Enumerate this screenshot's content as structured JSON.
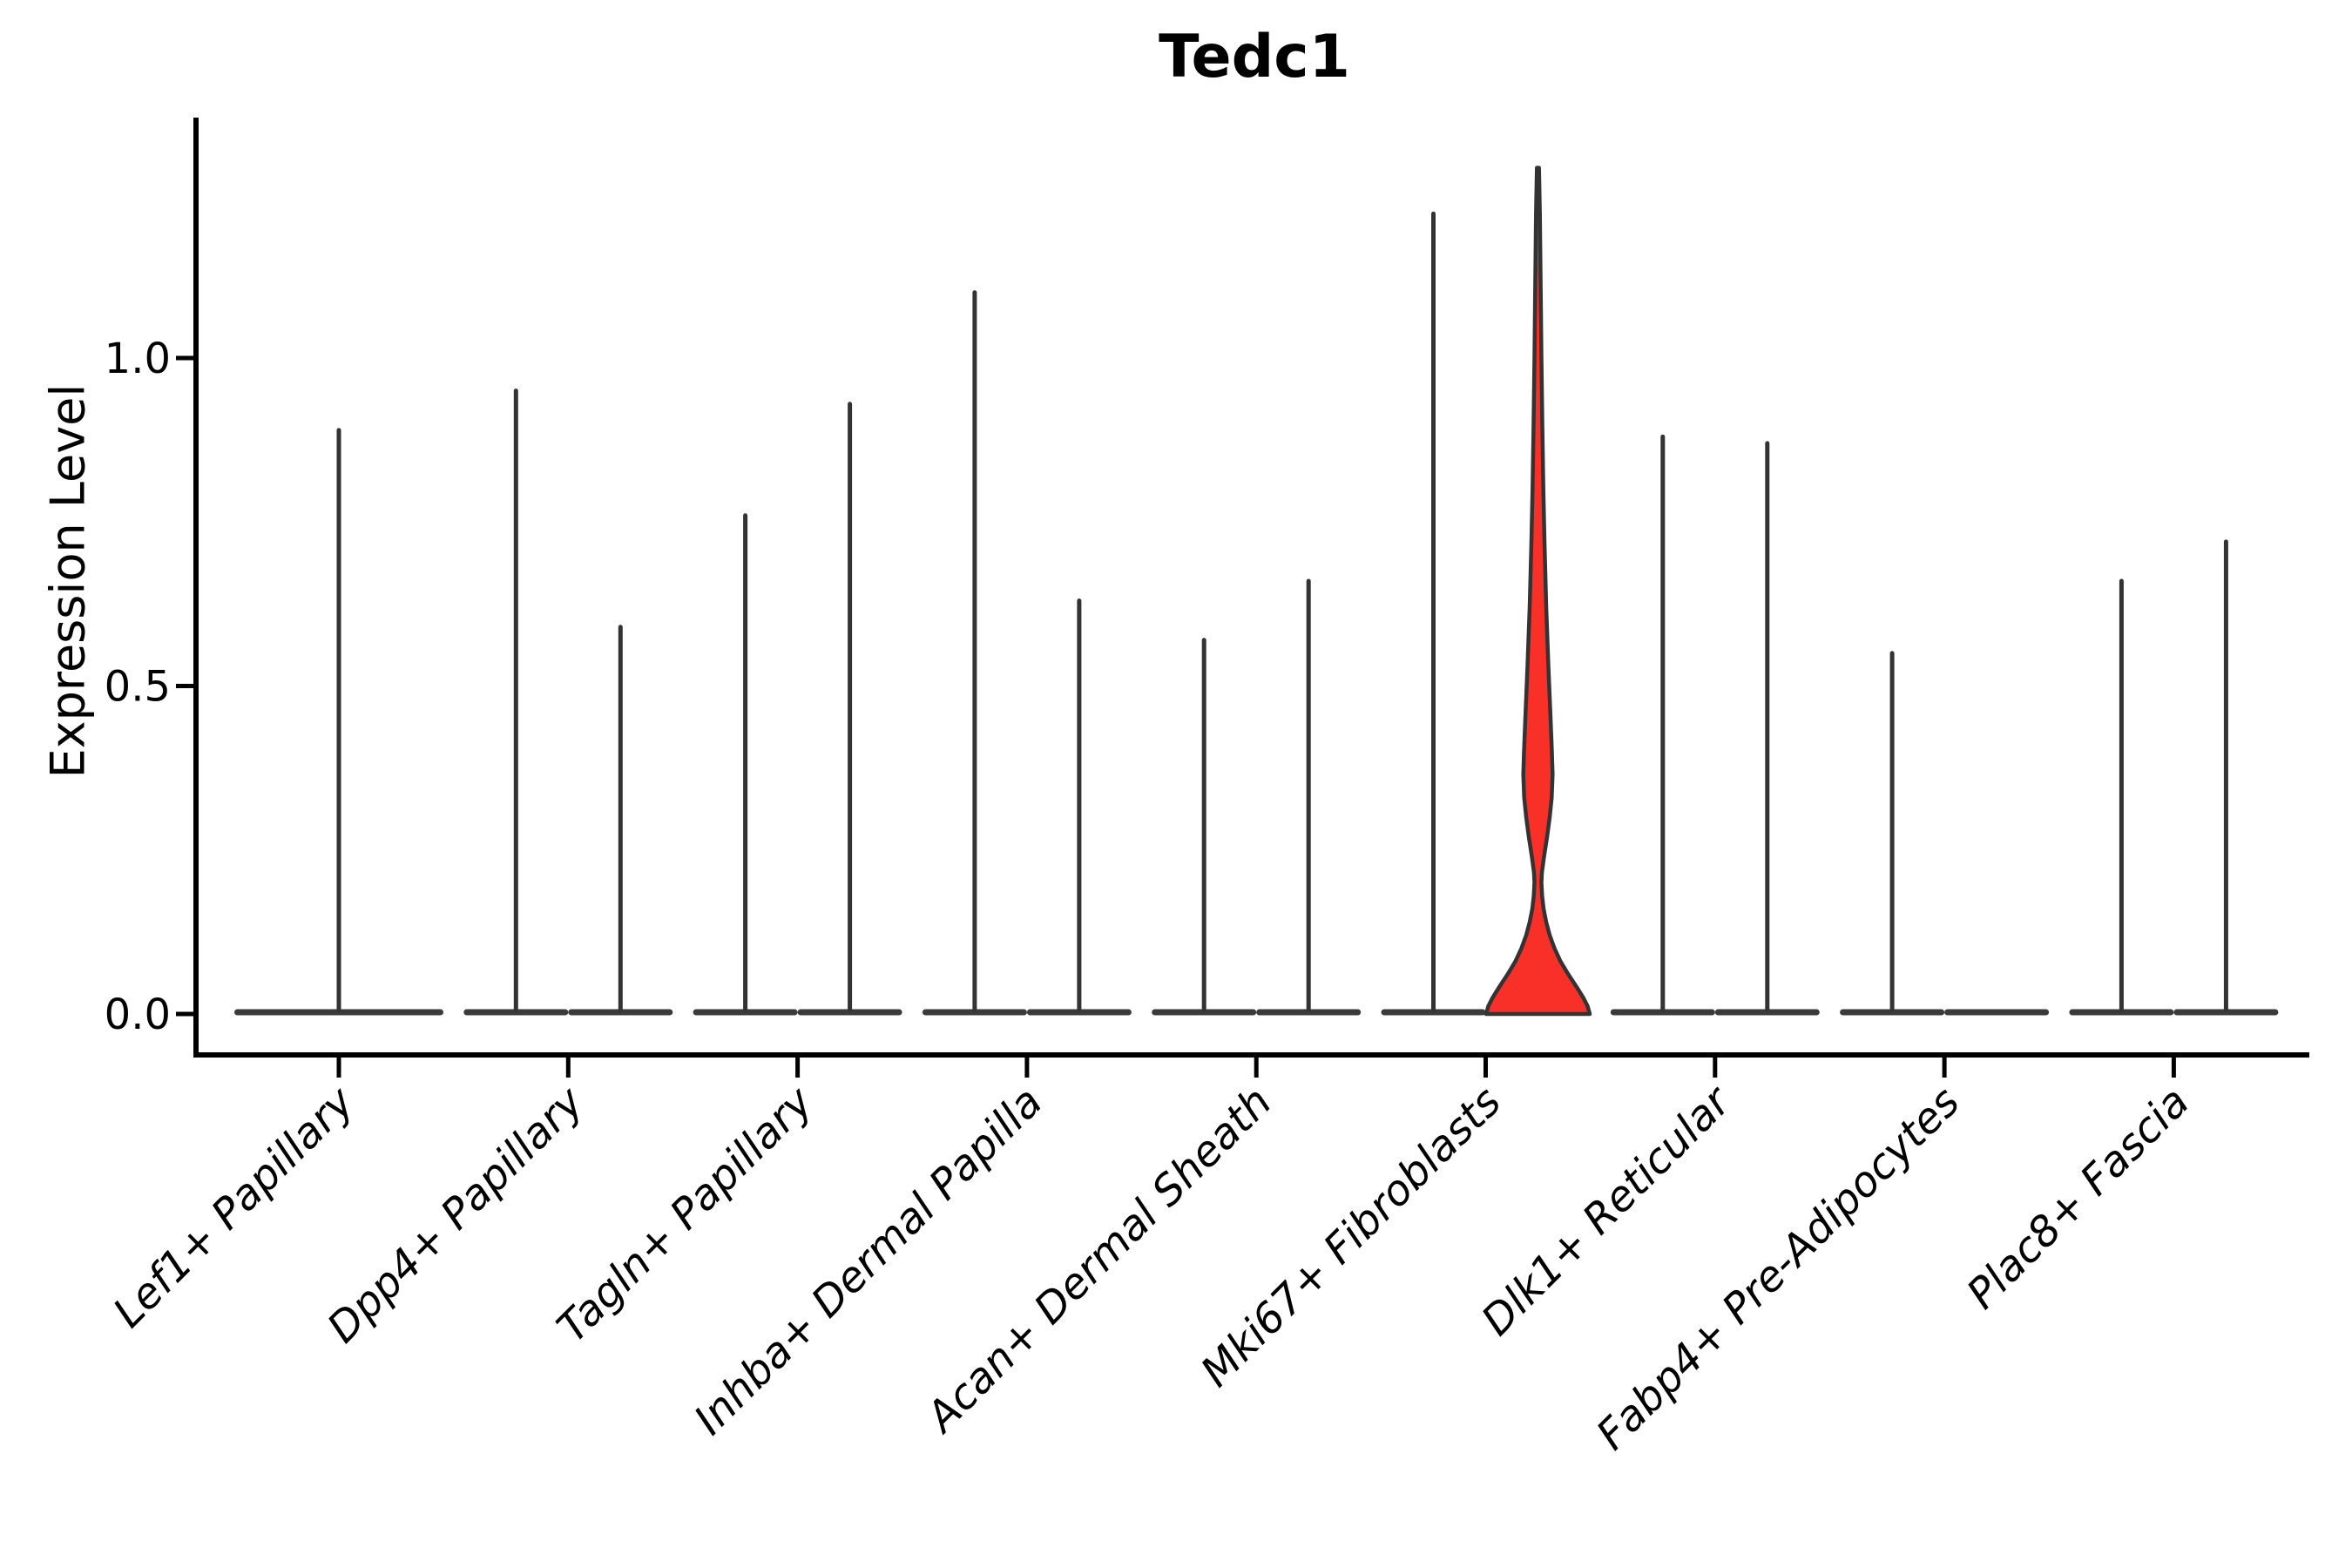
{
  "chart_data": {
    "type": "violin",
    "title": "Tedc1",
    "ylabel": "Expression Level",
    "xlabel": "",
    "grid": false,
    "legend": null,
    "ylim": [
      -0.06,
      1.37
    ],
    "y_ticks": [
      {
        "label": "1.0",
        "value": 1.0
      },
      {
        "label": "0.5",
        "value": 0.5
      },
      {
        "label": "0.0",
        "value": 0.0
      }
    ],
    "categories": [
      "Lef1+ Papillary",
      "Dpp4+ Papillary",
      "Tagln+ Papillary",
      "Inhba+ Dermal Papilla",
      "Acan+ Dermal Sheath",
      "Mki67+ Fibroblasts",
      "Dlk1+ Reticular",
      "Fabp4+ Pre-Adipocytes",
      "Plac8+ Fascia"
    ],
    "violins": [
      {
        "category": "Lef1+ Papillary",
        "parts": [
          {
            "position": "center",
            "max_expression": 0.89
          }
        ]
      },
      {
        "category": "Dpp4+ Papillary",
        "parts": [
          {
            "position": "left",
            "max_expression": 0.95
          },
          {
            "position": "right",
            "max_expression": 0.59
          }
        ]
      },
      {
        "category": "Tagln+ Papillary",
        "parts": [
          {
            "position": "left",
            "max_expression": 0.76
          },
          {
            "position": "right",
            "max_expression": 0.93
          }
        ]
      },
      {
        "category": "Inhba+ Dermal Papilla",
        "parts": [
          {
            "position": "left",
            "max_expression": 1.1
          },
          {
            "position": "right",
            "max_expression": 0.63
          }
        ]
      },
      {
        "category": "Acan+ Dermal Sheath",
        "parts": [
          {
            "position": "left",
            "max_expression": 0.57
          },
          {
            "position": "right",
            "max_expression": 0.66
          }
        ]
      },
      {
        "category": "Mki67+ Fibroblasts",
        "parts": [
          {
            "position": "left",
            "max_expression": 1.22
          },
          {
            "position": "right",
            "max_expression": 1.29,
            "style": "filled",
            "note": "prominent red violin with visible density body"
          }
        ]
      },
      {
        "category": "Dlk1+ Reticular",
        "parts": [
          {
            "position": "left",
            "max_expression": 0.88
          },
          {
            "position": "right",
            "max_expression": 0.87
          }
        ]
      },
      {
        "category": "Fabp4+ Pre-Adipocytes",
        "parts": [
          {
            "position": "left",
            "max_expression": 0.55
          },
          {
            "position": "right",
            "max_expression": 0.0
          }
        ]
      },
      {
        "category": "Plac8+ Fascia",
        "parts": [
          {
            "position": "left",
            "max_expression": 0.66
          },
          {
            "position": "right",
            "max_expression": 0.72
          }
        ]
      }
    ],
    "highlight_violin_profile": [
      [
        1.29,
        1.2
      ],
      [
        1.22,
        2.2
      ],
      [
        1.1,
        3.2
      ],
      [
        1.0,
        4.0
      ],
      [
        0.9,
        5.0
      ],
      [
        0.8,
        6.2
      ],
      [
        0.72,
        7.5
      ],
      [
        0.62,
        9.5
      ],
      [
        0.53,
        12.0
      ],
      [
        0.45,
        14.5
      ],
      [
        0.4,
        16.0
      ],
      [
        0.365,
        16.8
      ],
      [
        0.33,
        15.8
      ],
      [
        0.3,
        13.5
      ],
      [
        0.27,
        10.5
      ],
      [
        0.24,
        7.0
      ],
      [
        0.215,
        4.5
      ],
      [
        0.2,
        4.0
      ],
      [
        0.18,
        4.8
      ],
      [
        0.16,
        6.5
      ],
      [
        0.14,
        9.5
      ],
      [
        0.12,
        13.5
      ],
      [
        0.1,
        19.0
      ],
      [
        0.08,
        26.0
      ],
      [
        0.06,
        35.0
      ],
      [
        0.04,
        45.0
      ],
      [
        0.025,
        52.0
      ],
      [
        0.012,
        57.0
      ],
      [
        0.0,
        59.5
      ]
    ],
    "colors": {
      "violin_outline": "#333333",
      "baseline": "#3a3a3a",
      "highlight_fill": "#f93028",
      "axis": "#000000",
      "text": "#000000"
    }
  }
}
